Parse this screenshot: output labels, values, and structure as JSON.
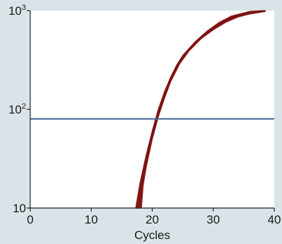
{
  "chart_data": {
    "type": "line",
    "title": "",
    "xlabel": "Cycles",
    "ylabel": "",
    "xlim": [
      0,
      40
    ],
    "ylim": [
      10,
      1000
    ],
    "y_scale": "log",
    "grid": false,
    "x_ticks": [
      {
        "value": 0,
        "label": "0"
      },
      {
        "value": 10,
        "label": "10"
      },
      {
        "value": 20,
        "label": "20"
      },
      {
        "value": 30,
        "label": "30"
      },
      {
        "value": 40,
        "label": "40"
      }
    ],
    "y_ticks": [
      {
        "value": 10,
        "base": "10",
        "exp": ""
      },
      {
        "value": 100,
        "base": "10",
        "exp": "2"
      },
      {
        "value": 1000,
        "base": "10",
        "exp": "3"
      }
    ],
    "threshold": {
      "y": 80,
      "color": "#4a6a9b"
    },
    "series": [
      {
        "color": "#8b1a1a",
        "upper": [
          [
            17.3,
            10
          ],
          [
            18.0,
            18
          ],
          [
            19.0,
            34
          ],
          [
            20.0,
            60
          ],
          [
            21.0,
            100
          ],
          [
            22.0,
            150
          ],
          [
            23.0,
            210
          ],
          [
            24.0,
            280
          ],
          [
            25.0,
            350
          ],
          [
            27.0,
            480
          ],
          [
            29.0,
            620
          ],
          [
            31.0,
            760
          ],
          [
            33.0,
            880
          ],
          [
            36.0,
            980
          ],
          [
            38.5,
            1000
          ]
        ],
        "lower": [
          [
            38.5,
            980
          ],
          [
            36.0,
            925
          ],
          [
            34.0,
            860
          ],
          [
            32.0,
            760
          ],
          [
            30.0,
            640
          ],
          [
            28.0,
            520
          ],
          [
            26.0,
            390
          ],
          [
            24.5,
            290
          ],
          [
            23.0,
            190
          ],
          [
            22.0,
            130
          ],
          [
            21.0,
            85
          ],
          [
            20.0,
            50
          ],
          [
            19.0,
            26
          ],
          [
            18.5,
            17
          ],
          [
            18.2,
            10
          ]
        ]
      }
    ]
  }
}
